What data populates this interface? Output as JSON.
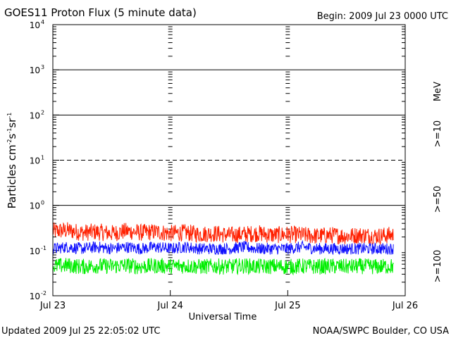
{
  "header": {
    "title": "GOES11 Proton Flux (5 minute data)",
    "begin": "Begin: 2009 Jul 23 0000 UTC"
  },
  "footer": {
    "updated": "Updated 2009 Jul 25 22:05:02 UTC",
    "credit": "NOAA/SWPC Boulder, CO USA"
  },
  "legend": {
    "unit": "MeV",
    "items": [
      {
        "label": ">=10",
        "color": "#ff2000"
      },
      {
        "label": ">=50",
        "color": "#1010ff"
      },
      {
        "label": ">=100",
        "color": "#00ee00"
      }
    ]
  },
  "chart_data": {
    "type": "line",
    "title": "GOES11 Proton Flux (5 minute data)",
    "xlabel": "Universal Time",
    "ylabel": "Particles cm-2s-1sr-1",
    "yscale": "log",
    "ylim": [
      0.01,
      10000
    ],
    "xlim": [
      "2009-07-23 00:00",
      "2009-07-26 00:00"
    ],
    "x_ticks": [
      "Jul 23",
      "Jul 24",
      "Jul 25",
      "Jul 26"
    ],
    "y_ticks": [
      {
        "base": "10",
        "exp": "-2"
      },
      {
        "base": "10",
        "exp": "-1"
      },
      {
        "base": "10",
        "exp": "0"
      },
      {
        "base": "10",
        "exp": "1"
      },
      {
        "base": "10",
        "exp": "2"
      },
      {
        "base": "10",
        "exp": "3"
      },
      {
        "base": "10",
        "exp": "4"
      }
    ],
    "reference_lines": [
      {
        "value": 1,
        "style": "solid"
      },
      {
        "value": 10,
        "style": "dashed"
      },
      {
        "value": 100,
        "style": "solid"
      },
      {
        "value": 1000,
        "style": "solid"
      }
    ],
    "x_hours": [
      0,
      3,
      6,
      9,
      12,
      15,
      18,
      21,
      24,
      27,
      30,
      33,
      36,
      39,
      42,
      45,
      48,
      51,
      54,
      57,
      60,
      63,
      66,
      69
    ],
    "series": [
      {
        "name": ">=10 MeV",
        "color": "#ff2000",
        "values": [
          0.27,
          0.28,
          0.25,
          0.26,
          0.24,
          0.27,
          0.25,
          0.26,
          0.24,
          0.25,
          0.23,
          0.24,
          0.22,
          0.23,
          0.24,
          0.22,
          0.23,
          0.22,
          0.21,
          0.22,
          0.21,
          0.22,
          0.21,
          0.22
        ]
      },
      {
        "name": ">=50 MeV",
        "color": "#1010ff",
        "values": [
          0.11,
          0.12,
          0.11,
          0.12,
          0.11,
          0.12,
          0.11,
          0.12,
          0.11,
          0.12,
          0.11,
          0.11,
          0.11,
          0.12,
          0.11,
          0.11,
          0.11,
          0.12,
          0.11,
          0.11,
          0.11,
          0.11,
          0.11,
          0.11
        ]
      },
      {
        "name": ">=100 MeV",
        "color": "#00ee00",
        "values": [
          0.045,
          0.047,
          0.044,
          0.046,
          0.045,
          0.047,
          0.044,
          0.046,
          0.045,
          0.046,
          0.044,
          0.045,
          0.044,
          0.046,
          0.044,
          0.045,
          0.044,
          0.045,
          0.044,
          0.045,
          0.044,
          0.045,
          0.044,
          0.045
        ]
      }
    ]
  }
}
